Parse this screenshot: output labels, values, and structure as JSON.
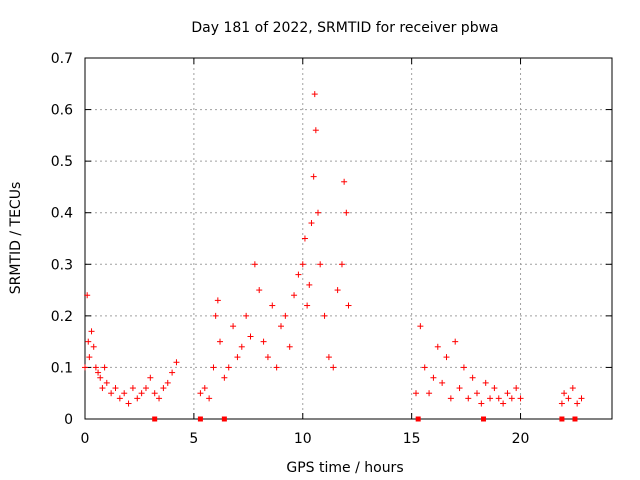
{
  "chart_data": {
    "type": "scatter",
    "title": "Day 181 of 2022, SRMTID for receiver pbwa",
    "xlabel": "GPS time / hours",
    "ylabel": "SRMTID / TECUs",
    "xlim": [
      0,
      24.2
    ],
    "ylim": [
      0,
      0.7
    ],
    "x_ticks": [
      0,
      5,
      10,
      15,
      20
    ],
    "y_ticks": [
      0,
      0.1,
      0.2,
      0.3,
      0.4,
      0.5,
      0.6,
      0.7
    ],
    "grid": true,
    "marker": "+",
    "colors": {
      "points": "#ff0000",
      "grid": "#a0a0a0",
      "axes": "#000000"
    },
    "x_tick_labels": [
      "0",
      "5",
      "10",
      "15",
      "20"
    ],
    "y_tick_labels": [
      "0",
      "0.1",
      "0.2",
      "0.3",
      "0.4",
      "0.5",
      "0.6",
      "0.7"
    ],
    "series": [
      {
        "name": "SRMTID",
        "x": [
          0.0,
          0.1,
          0.15,
          0.2,
          0.3,
          0.4,
          0.5,
          0.6,
          0.7,
          0.8,
          0.9,
          1.0,
          1.2,
          1.4,
          1.6,
          1.8,
          2.0,
          2.2,
          2.4,
          2.6,
          2.8,
          3.0,
          3.2,
          3.4,
          3.6,
          3.8,
          4.0,
          4.2,
          5.3,
          5.5,
          5.7,
          5.9,
          6.0,
          6.1,
          6.2,
          6.4,
          6.6,
          6.8,
          7.0,
          7.2,
          7.4,
          7.6,
          7.8,
          8.0,
          8.2,
          8.4,
          8.6,
          8.8,
          9.0,
          9.2,
          9.4,
          9.6,
          9.8,
          10.0,
          10.1,
          10.2,
          10.3,
          10.4,
          10.5,
          10.55,
          10.6,
          10.7,
          10.8,
          11.0,
          11.2,
          11.4,
          11.6,
          11.8,
          11.9,
          12.0,
          12.1,
          15.2,
          15.4,
          15.6,
          15.8,
          16.0,
          16.2,
          16.4,
          16.6,
          16.8,
          17.0,
          17.2,
          17.4,
          17.6,
          17.8,
          18.0,
          18.2,
          18.4,
          18.6,
          18.8,
          19.0,
          19.2,
          19.4,
          19.6,
          19.8,
          20.0,
          21.9,
          22.0,
          22.2,
          22.4,
          22.6,
          22.8
        ],
        "y": [
          0.1,
          0.24,
          0.15,
          0.12,
          0.17,
          0.14,
          0.1,
          0.09,
          0.08,
          0.06,
          0.1,
          0.07,
          0.05,
          0.06,
          0.04,
          0.05,
          0.03,
          0.06,
          0.04,
          0.05,
          0.06,
          0.08,
          0.05,
          0.04,
          0.06,
          0.07,
          0.09,
          0.11,
          0.05,
          0.06,
          0.04,
          0.1,
          0.2,
          0.23,
          0.15,
          0.08,
          0.1,
          0.18,
          0.12,
          0.14,
          0.2,
          0.16,
          0.3,
          0.25,
          0.15,
          0.12,
          0.22,
          0.1,
          0.18,
          0.2,
          0.14,
          0.24,
          0.28,
          0.3,
          0.35,
          0.22,
          0.26,
          0.38,
          0.47,
          0.63,
          0.56,
          0.4,
          0.3,
          0.2,
          0.12,
          0.1,
          0.25,
          0.3,
          0.46,
          0.4,
          0.22,
          0.05,
          0.18,
          0.1,
          0.05,
          0.08,
          0.14,
          0.07,
          0.12,
          0.04,
          0.15,
          0.06,
          0.1,
          0.04,
          0.08,
          0.05,
          0.03,
          0.07,
          0.04,
          0.06,
          0.04,
          0.03,
          0.05,
          0.04,
          0.06,
          0.04,
          0.03,
          0.05,
          0.04,
          0.06,
          0.03,
          0.04
        ]
      }
    ],
    "gap_markers_x": [
      3.2,
      5.3,
      6.4,
      15.3,
      18.3,
      21.9,
      22.5
    ]
  }
}
